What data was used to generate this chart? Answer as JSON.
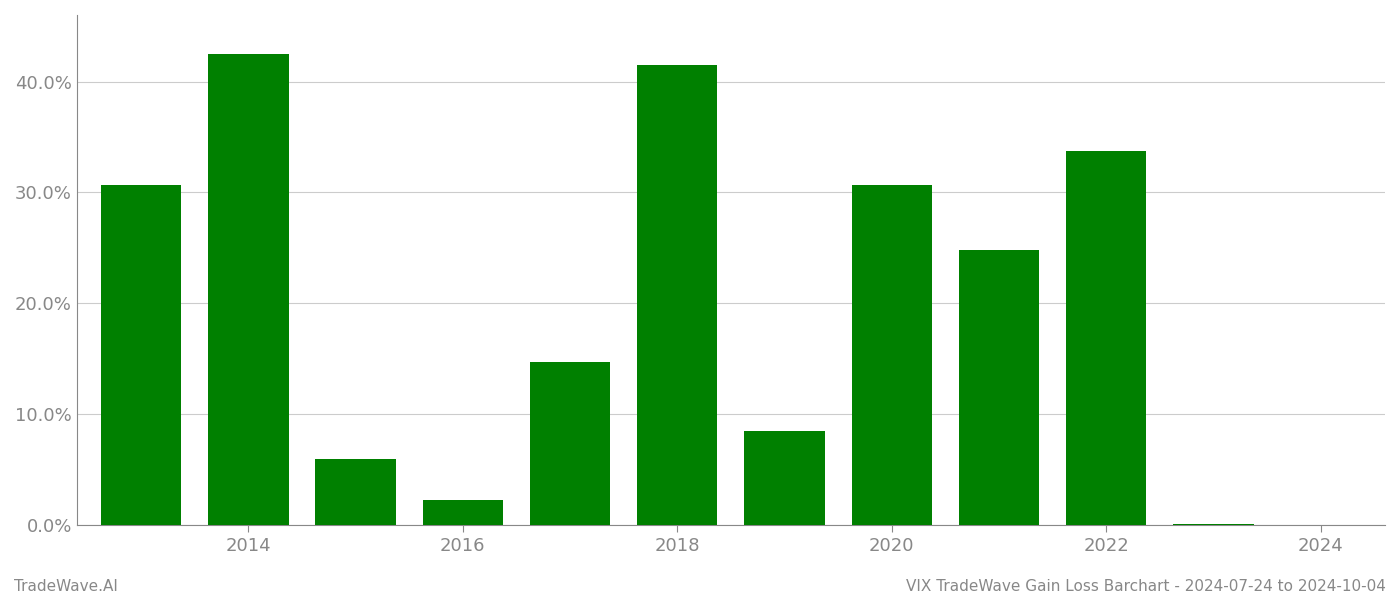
{
  "years": [
    2013,
    2014,
    2015,
    2016,
    2017,
    2018,
    2019,
    2020,
    2021,
    2022,
    2023
  ],
  "values": [
    0.307,
    0.425,
    0.06,
    0.023,
    0.147,
    0.415,
    0.085,
    0.307,
    0.248,
    0.337,
    0.001
  ],
  "bar_color": "#008000",
  "background_color": "#ffffff",
  "grid_color": "#cccccc",
  "ylim": [
    0,
    0.46
  ],
  "yticks": [
    0.0,
    0.1,
    0.2,
    0.3,
    0.4
  ],
  "xtick_labels": [
    "2014",
    "2016",
    "2018",
    "2020",
    "2022",
    "2024"
  ],
  "footer_left": "TradeWave.AI",
  "footer_right": "VIX TradeWave Gain Loss Barchart - 2024-07-24 to 2024-10-04",
  "footer_fontsize": 11,
  "tick_fontsize": 13,
  "axis_color": "#888888",
  "bar_width": 0.75,
  "xlim_left": 2012.4,
  "xlim_right": 2024.6
}
